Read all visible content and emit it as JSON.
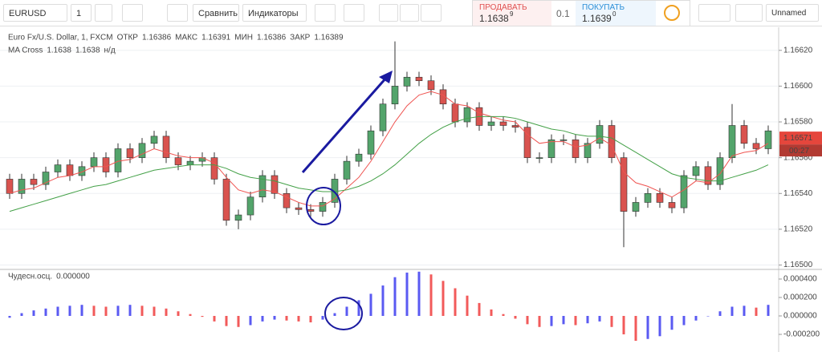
{
  "toolbar": {
    "symbol": "EURUSD",
    "interval": "1",
    "compare": "Сравнить",
    "indicators": "Индикаторы",
    "sell_label": "ПРОДАВАТЬ",
    "sell_price": "1.1638",
    "sell_price_sup": "9",
    "spread": "0.1",
    "buy_label": "ПОКУПАТЬ",
    "buy_price": "1.1639",
    "buy_price_sup": "0",
    "layout_name": "Unnamed"
  },
  "chart_data": [
    {
      "type": "candlestick",
      "legend": {
        "title": "Euro Fx/U.S. Dollar, 1, FXCM",
        "items": [
          {
            "label": "ОТКР",
            "value": "1.16386"
          },
          {
            "label": "МАКС",
            "value": "1.16391"
          },
          {
            "label": "МИН",
            "value": "1.16386"
          },
          {
            "label": "ЗАКР",
            "value": "1.16389"
          }
        ]
      },
      "indicator": {
        "name": "MA Cross",
        "values": [
          "1.1638",
          "1.1638",
          "н/д"
        ]
      },
      "open": [
        1.16548,
        1.1654,
        1.16548,
        1.16545,
        1.16552,
        1.16556,
        1.1655,
        1.16555,
        1.1656,
        1.16552,
        1.16565,
        1.1656,
        1.16568,
        1.16572,
        1.1656,
        1.16556,
        1.16558,
        1.1656,
        1.16548,
        1.16525,
        1.16528,
        1.16538,
        1.1655,
        1.1654,
        1.16532,
        1.16531,
        1.1653,
        1.16535,
        1.16548,
        1.16558,
        1.16562,
        1.16575,
        1.1659,
        1.166,
        1.16605,
        1.16603,
        1.16598,
        1.1659,
        1.1658,
        1.16588,
        1.16578,
        1.1658,
        1.16578,
        1.16577,
        1.1656,
        1.1656,
        1.1657,
        1.1657,
        1.1656,
        1.16568,
        1.16578,
        1.1656,
        1.1653,
        1.16535,
        1.1654,
        1.16535,
        1.16532,
        1.1655,
        1.16555,
        1.16545,
        1.1656,
        1.16578,
        1.16568,
        1.16565
      ],
      "high": [
        1.16551,
        1.16551,
        1.16551,
        1.16555,
        1.16559,
        1.16559,
        1.16558,
        1.16563,
        1.16563,
        1.16568,
        1.16568,
        1.16571,
        1.16575,
        1.16575,
        1.16563,
        1.16561,
        1.16563,
        1.16563,
        1.16551,
        1.16531,
        1.16541,
        1.16553,
        1.16553,
        1.16543,
        1.16535,
        1.16534,
        1.16538,
        1.16551,
        1.16561,
        1.16565,
        1.16578,
        1.16593,
        1.16625,
        1.16608,
        1.16608,
        1.16606,
        1.16601,
        1.16593,
        1.16591,
        1.16591,
        1.16583,
        1.16583,
        1.16581,
        1.1658,
        1.16563,
        1.16573,
        1.16573,
        1.16573,
        1.16571,
        1.16581,
        1.16581,
        1.16563,
        1.16538,
        1.16543,
        1.16543,
        1.16538,
        1.16553,
        1.16558,
        1.16558,
        1.16563,
        1.1659,
        1.16581,
        1.16571,
        1.16578
      ],
      "low": [
        1.16537,
        1.16537,
        1.16542,
        1.16542,
        1.16549,
        1.16547,
        1.16547,
        1.16552,
        1.16549,
        1.16549,
        1.16557,
        1.16557,
        1.16565,
        1.16557,
        1.16553,
        1.16553,
        1.16555,
        1.16545,
        1.16522,
        1.1652,
        1.16525,
        1.16535,
        1.16537,
        1.16529,
        1.16528,
        1.16527,
        1.16527,
        1.16532,
        1.16545,
        1.16555,
        1.16559,
        1.16572,
        1.16587,
        1.16597,
        1.166,
        1.16595,
        1.16587,
        1.16577,
        1.16577,
        1.16575,
        1.16575,
        1.16575,
        1.16574,
        1.16557,
        1.16557,
        1.16557,
        1.16567,
        1.16557,
        1.16557,
        1.16565,
        1.16557,
        1.1651,
        1.16527,
        1.16532,
        1.16532,
        1.16529,
        1.16529,
        1.16547,
        1.16542,
        1.16542,
        1.16557,
        1.16565,
        1.16562,
        1.16562
      ],
      "close": [
        1.1654,
        1.16548,
        1.16545,
        1.16552,
        1.16556,
        1.1655,
        1.16555,
        1.1656,
        1.16552,
        1.16565,
        1.1656,
        1.16568,
        1.16572,
        1.1656,
        1.16556,
        1.16558,
        1.1656,
        1.16548,
        1.16525,
        1.16528,
        1.16538,
        1.1655,
        1.1654,
        1.16532,
        1.16531,
        1.1653,
        1.16535,
        1.16548,
        1.16558,
        1.16562,
        1.16575,
        1.1659,
        1.166,
        1.16605,
        1.16603,
        1.16598,
        1.1659,
        1.1658,
        1.16588,
        1.16578,
        1.1658,
        1.16578,
        1.16577,
        1.1656,
        1.1656,
        1.1657,
        1.1657,
        1.1656,
        1.16568,
        1.16578,
        1.1656,
        1.1653,
        1.16535,
        1.1654,
        1.16535,
        1.16532,
        1.1655,
        1.16555,
        1.16545,
        1.1656,
        1.16578,
        1.16568,
        1.16565,
        1.16575
      ],
      "up_color": "#53a46b",
      "down_color": "#d9534f",
      "series": [
        {
          "color": "#ef5350",
          "values": [
            1.1654,
            1.16542,
            1.16543,
            1.16546,
            1.16549,
            1.1655,
            1.16552,
            1.16555,
            1.16555,
            1.16558,
            1.16559,
            1.16562,
            1.16565,
            1.16563,
            1.16561,
            1.1656,
            1.1656,
            1.16557,
            1.16549,
            1.16542,
            1.1654,
            1.16542,
            1.16541,
            1.16538,
            1.16535,
            1.16533,
            1.16533,
            1.16537,
            1.16543,
            1.16549,
            1.16558,
            1.16569,
            1.1658,
            1.16589,
            1.16595,
            1.16597,
            1.16595,
            1.1659,
            1.16589,
            1.16585,
            1.16583,
            1.16581,
            1.1658,
            1.16573,
            1.16568,
            1.16569,
            1.16569,
            1.16566,
            1.16567,
            1.16571,
            1.16567,
            1.16552,
            1.16546,
            1.16544,
            1.16541,
            1.16538,
            1.16542,
            1.16547,
            1.16546,
            1.16551,
            1.16561,
            1.16563,
            1.16564,
            1.16568
          ]
        },
        {
          "color": "#43a047",
          "values": [
            1.1653,
            1.16532,
            1.16534,
            1.16536,
            1.16538,
            1.1654,
            1.16542,
            1.16544,
            1.16545,
            1.16547,
            1.16549,
            1.16551,
            1.16553,
            1.16554,
            1.16555,
            1.16556,
            1.16556,
            1.16556,
            1.16554,
            1.16551,
            1.16549,
            1.16548,
            1.16547,
            1.16545,
            1.16543,
            1.16542,
            1.16541,
            1.16541,
            1.16542,
            1.16544,
            1.16547,
            1.16551,
            1.16556,
            1.16562,
            1.16568,
            1.16573,
            1.16577,
            1.1658,
            1.16582,
            1.16583,
            1.16583,
            1.16583,
            1.16582,
            1.1658,
            1.16578,
            1.16576,
            1.16575,
            1.16573,
            1.16572,
            1.16572,
            1.16571,
            1.16567,
            1.16563,
            1.16559,
            1.16555,
            1.16551,
            1.16549,
            1.16548,
            1.16547,
            1.16547,
            1.16549,
            1.16551,
            1.16553,
            1.16556
          ]
        }
      ],
      "ylim": [
        1.16498,
        1.16632
      ],
      "yticks": [
        {
          "value": 1.165,
          "label": "1.16500"
        },
        {
          "value": 1.1652,
          "label": "1.16520"
        },
        {
          "value": 1.1654,
          "label": "1.16540"
        },
        {
          "value": 1.1656,
          "label": "1.16560"
        },
        {
          "value": 1.1658,
          "label": "1.16580"
        },
        {
          "value": 1.166,
          "label": "1.16600"
        },
        {
          "value": 1.1662,
          "label": "1.16620"
        }
      ],
      "grid": true,
      "last_price": {
        "value": 1.16571,
        "label": "1.16571"
      },
      "countdown": "00:27"
    },
    {
      "type": "bar",
      "title": "Чудесн.осц.",
      "legend_value": "0.000000",
      "values": [
        -2e-05,
        3e-05,
        6e-05,
        8e-05,
        0.0001,
        0.00011,
        0.00012,
        0.00011,
        0.0001,
        0.00011,
        0.00012,
        0.00011,
        0.0001,
        8e-05,
        5e-05,
        2e-05,
        -1e-05,
        -6e-05,
        -0.00011,
        -0.00012,
        -0.0001,
        -6e-05,
        -4e-05,
        -5e-05,
        -6e-05,
        -7e-05,
        -4e-05,
        3e-05,
        0.0001,
        0.00017,
        0.00024,
        0.00033,
        0.00042,
        0.00047,
        0.00048,
        0.00045,
        0.00038,
        0.0003,
        0.00022,
        0.00014,
        7e-05,
        2e-05,
        -3e-05,
        -9e-05,
        -0.00012,
        -0.00011,
        -9e-05,
        -0.0001,
        -8e-05,
        -6e-05,
        -0.00012,
        -0.0002,
        -0.00027,
        -0.00025,
        -0.00022,
        -0.00015,
        -0.0001,
        -5e-05,
        0,
        5e-05,
        0.0001,
        0.00011,
        9e-05,
        0.00012
      ],
      "up_color": "#5a5af2",
      "down_color": "#f25a5a",
      "ylim": [
        -0.000374,
        0.000487
      ],
      "yticks": [
        {
          "value": -0.0002,
          "label": "-0.000200"
        },
        {
          "value": 0,
          "label": "0.000000"
        },
        {
          "value": 0.0002,
          "label": "0.000200"
        },
        {
          "value": 0.0004,
          "label": "0.000400"
        }
      ]
    }
  ]
}
